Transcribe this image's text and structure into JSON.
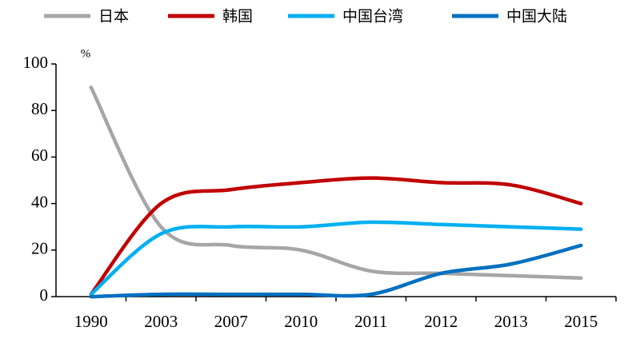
{
  "chart_data": {
    "type": "line",
    "unit": "%",
    "categories": [
      "1990",
      "2003",
      "2007",
      "2010",
      "2011",
      "2012",
      "2013",
      "2015"
    ],
    "series": [
      {
        "name": "日本",
        "color": "#a6a6a6",
        "values": [
          90,
          30,
          22,
          20,
          11,
          10,
          9,
          8
        ]
      },
      {
        "name": "韩国",
        "color": "#c00000",
        "values": [
          1,
          40,
          46,
          49,
          51,
          49,
          48,
          40
        ]
      },
      {
        "name": "中国台湾",
        "color": "#00b0f0",
        "values": [
          1,
          27,
          30,
          30,
          32,
          31,
          30,
          29
        ]
      },
      {
        "name": "中国大陆",
        "color": "#0070c0",
        "values": [
          0,
          1,
          1,
          1,
          1,
          10,
          14,
          22
        ]
      }
    ],
    "ylim": [
      0,
      100
    ],
    "yticks": [
      0,
      20,
      40,
      60,
      80,
      100
    ],
    "grid": false,
    "legend": "top"
  }
}
